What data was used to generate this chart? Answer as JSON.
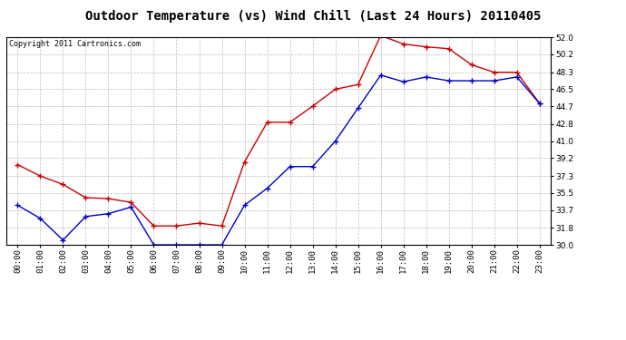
{
  "title": "Outdoor Temperature (vs) Wind Chill (Last 24 Hours) 20110405",
  "copyright": "Copyright 2011 Cartronics.com",
  "hours": [
    "00:00",
    "01:00",
    "02:00",
    "03:00",
    "04:00",
    "05:00",
    "06:00",
    "07:00",
    "08:00",
    "09:00",
    "10:00",
    "11:00",
    "12:00",
    "13:00",
    "14:00",
    "15:00",
    "16:00",
    "17:00",
    "18:00",
    "19:00",
    "20:00",
    "21:00",
    "22:00",
    "23:00"
  ],
  "temp": [
    38.5,
    37.3,
    36.4,
    35.0,
    34.9,
    34.5,
    32.0,
    32.0,
    32.3,
    32.0,
    38.8,
    43.0,
    43.0,
    44.7,
    46.5,
    47.0,
    52.2,
    51.3,
    51.0,
    50.8,
    49.1,
    48.3,
    48.3,
    45.0
  ],
  "windchill": [
    34.2,
    32.8,
    30.5,
    33.0,
    33.3,
    34.0,
    30.0,
    30.0,
    30.0,
    30.0,
    34.2,
    36.0,
    38.3,
    38.3,
    41.0,
    44.5,
    48.0,
    47.3,
    47.8,
    47.4,
    47.4,
    47.4,
    47.8,
    45.0
  ],
  "temp_color": "#cc0000",
  "windchill_color": "#0000cc",
  "bg_color": "#ffffff",
  "plot_bg_color": "#ffffff",
  "grid_color": "#bbbbbb",
  "ylim": [
    30.0,
    52.0
  ],
  "yticks": [
    30.0,
    31.8,
    33.7,
    35.5,
    37.3,
    39.2,
    41.0,
    42.8,
    44.7,
    46.5,
    48.3,
    50.2,
    52.0
  ],
  "title_fontsize": 10,
  "copyright_fontsize": 6,
  "tick_fontsize": 6.5
}
